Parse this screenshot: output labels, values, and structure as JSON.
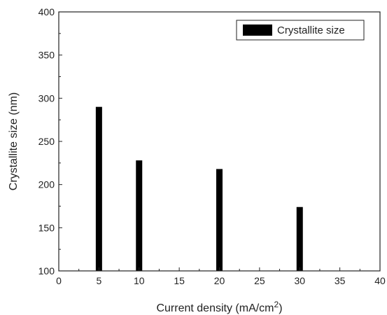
{
  "chart_data": {
    "type": "bar",
    "title": "",
    "xlabel": "Current density (mA/cm",
    "xlabel_superscript": "2",
    "xlabel_close": ")",
    "ylabel": "Crystallite size (nm)",
    "xlim": [
      0,
      40
    ],
    "ylim": [
      100,
      400
    ],
    "xticks": [
      0,
      5,
      10,
      15,
      20,
      25,
      30,
      35,
      40
    ],
    "yticks": [
      100,
      150,
      200,
      250,
      300,
      350,
      400
    ],
    "x": [
      5,
      10,
      20,
      30
    ],
    "series": [
      {
        "name": "Crystallite size",
        "values": [
          290,
          228,
          218,
          174
        ],
        "color": "#000000"
      }
    ],
    "legend_position": "top-right",
    "grid": false
  }
}
